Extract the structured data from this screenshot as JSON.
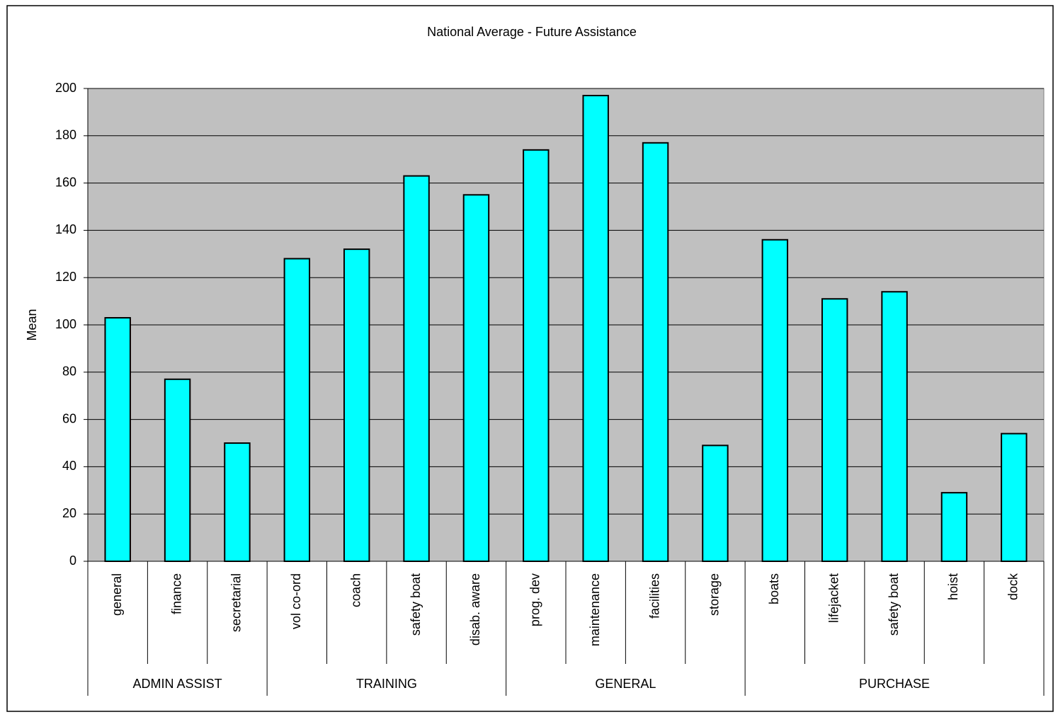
{
  "chart_data": {
    "type": "bar",
    "title": "National Average - Future Assistance",
    "y_label": "Mean",
    "groups": [
      {
        "name": "ADMIN ASSIST",
        "categories": [
          "general",
          "finance",
          "secretarial"
        ],
        "values": [
          103,
          77,
          50
        ]
      },
      {
        "name": "TRAINING",
        "categories": [
          "vol co-ord",
          "coach",
          "safety boat",
          "disab. aware"
        ],
        "values": [
          128,
          132,
          163,
          155
        ]
      },
      {
        "name": "GENERAL",
        "categories": [
          "prog. dev",
          "maintenance",
          "facilities",
          "storage"
        ],
        "values": [
          174,
          197,
          177,
          49
        ]
      },
      {
        "name": "PURCHASE",
        "categories": [
          "boats",
          "lifejacket",
          "safety boat",
          "hoist",
          "dock"
        ],
        "values": [
          136,
          111,
          114,
          29,
          54
        ]
      }
    ],
    "color": "#00ffff",
    "plot_background": "#c0c0c0",
    "ylim": [
      0,
      200
    ],
    "yticks": [
      0,
      20,
      40,
      60,
      80,
      100,
      120,
      140,
      160,
      180,
      200
    ],
    "grid": true
  }
}
